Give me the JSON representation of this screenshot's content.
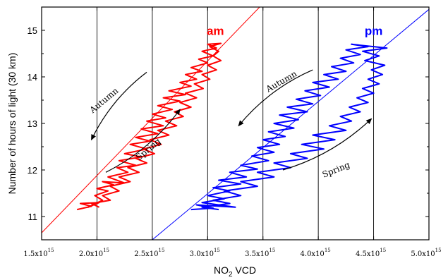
{
  "chart_data": {
    "type": "line",
    "xlabel": "NO",
    "xlabel_sub": "2",
    "xlabel_suffix": " VCD",
    "ylabel": "Number of hours of light (30 km)",
    "xlim": [
      1500000000000000.0,
      5000000000000000.0
    ],
    "ylim": [
      10.5,
      15.5
    ],
    "x_ticks": [
      1500000000000000.0,
      2000000000000000.0,
      2500000000000000.0,
      3000000000000000.0,
      3500000000000000.0,
      4000000000000000.0,
      4500000000000000.0,
      5000000000000000.0
    ],
    "x_tick_labels": [
      {
        "mantissa": "1.5x10",
        "exp": "15"
      },
      {
        "mantissa": "2.0x10",
        "exp": "15"
      },
      {
        "mantissa": "2.5x10",
        "exp": "15"
      },
      {
        "mantissa": "3.0x10",
        "exp": "15"
      },
      {
        "mantissa": "3.5x10",
        "exp": "15"
      },
      {
        "mantissa": "4.0x10",
        "exp": "15"
      },
      {
        "mantissa": "4.5x10",
        "exp": "15"
      },
      {
        "mantissa": "5.0x10",
        "exp": "15"
      }
    ],
    "y_ticks": [
      11,
      12,
      13,
      14,
      15
    ],
    "y_tick_labels": [
      "11",
      "12",
      "13",
      "14",
      "15"
    ],
    "vertical_grid": [
      2000000000000000.0,
      2500000000000000.0,
      3000000000000000.0,
      3500000000000000.0,
      4000000000000000.0,
      4500000000000000.0
    ],
    "series": [
      {
        "name": "am",
        "color": "#ff0000",
        "points": [
          [
            1820000000000000.0,
            11.15
          ],
          [
            1950000000000000.0,
            11.22
          ],
          [
            1850000000000000.0,
            11.28
          ],
          [
            2020000000000000.0,
            11.3
          ],
          [
            1920000000000000.0,
            11.2
          ],
          [
            2050000000000000.0,
            11.35
          ],
          [
            1980000000000000.0,
            11.45
          ],
          [
            2100000000000000.0,
            11.55
          ],
          [
            2000000000000000.0,
            11.6
          ],
          [
            2150000000000000.0,
            11.68
          ],
          [
            2050000000000000.0,
            11.75
          ],
          [
            2250000000000000.0,
            11.72
          ],
          [
            2100000000000000.0,
            11.85
          ],
          [
            2280000000000000.0,
            11.95
          ],
          [
            2180000000000000.0,
            12.05
          ],
          [
            2350000000000000.0,
            12.1
          ],
          [
            2200000000000000.0,
            12.2
          ],
          [
            2400000000000000.0,
            12.28
          ],
          [
            2250000000000000.0,
            12.35
          ],
          [
            2450000000000000.0,
            12.45
          ],
          [
            2300000000000000.0,
            12.55
          ],
          [
            2480000000000000.0,
            12.62
          ],
          [
            2350000000000000.0,
            12.7
          ],
          [
            2550000000000000.0,
            12.78
          ],
          [
            2400000000000000.0,
            12.88
          ],
          [
            2600000000000000.0,
            12.95
          ],
          [
            2450000000000000.0,
            13.05
          ],
          [
            2620000000000000.0,
            13.12
          ],
          [
            2500000000000000.0,
            13.2
          ],
          [
            2680000000000000.0,
            13.3
          ],
          [
            2550000000000000.0,
            13.38
          ],
          [
            2750000000000000.0,
            13.48
          ],
          [
            2600000000000000.0,
            13.55
          ],
          [
            2800000000000000.0,
            13.62
          ],
          [
            2650000000000000.0,
            13.7
          ],
          [
            2850000000000000.0,
            13.8
          ],
          [
            2750000000000000.0,
            13.88
          ],
          [
            2900000000000000.0,
            13.95
          ],
          [
            2800000000000000.0,
            14.05
          ],
          [
            2950000000000000.0,
            14.12
          ],
          [
            2850000000000000.0,
            14.2
          ],
          [
            3000000000000000.0,
            14.3
          ],
          [
            2920000000000000.0,
            14.38
          ],
          [
            3050000000000000.0,
            14.45
          ],
          [
            2950000000000000.0,
            14.55
          ],
          [
            3080000000000000.0,
            14.62
          ],
          [
            3000000000000000.0,
            14.7
          ],
          [
            3120000000000000.0,
            14.72
          ],
          [
            3020000000000000.0,
            14.65
          ],
          [
            3100000000000000.0,
            14.55
          ],
          [
            3050000000000000.0,
            14.45
          ],
          [
            3120000000000000.0,
            14.35
          ],
          [
            3000000000000000.0,
            14.25
          ],
          [
            3080000000000000.0,
            14.15
          ],
          [
            2950000000000000.0,
            14.05
          ],
          [
            3020000000000000.0,
            13.95
          ],
          [
            2880000000000000.0,
            13.85
          ],
          [
            2960000000000000.0,
            13.75
          ],
          [
            2800000000000000.0,
            13.65
          ],
          [
            2900000000000000.0,
            13.55
          ],
          [
            2750000000000000.0,
            13.45
          ],
          [
            2850000000000000.0,
            13.35
          ],
          [
            2700000000000000.0,
            13.25
          ],
          [
            2780000000000000.0,
            13.15
          ],
          [
            2620000000000000.0,
            13.05
          ],
          [
            2720000000000000.0,
            12.95
          ],
          [
            2550000000000000.0,
            12.85
          ],
          [
            2650000000000000.0,
            12.75
          ],
          [
            2480000000000000.0,
            12.65
          ],
          [
            2580000000000000.0,
            12.55
          ],
          [
            2420000000000000.0,
            12.45
          ],
          [
            2520000000000000.0,
            12.35
          ],
          [
            2350000000000000.0,
            12.25
          ],
          [
            2450000000000000.0,
            12.15
          ],
          [
            2280000000000000.0,
            12.05
          ],
          [
            2380000000000000.0,
            11.95
          ],
          [
            2200000000000000.0,
            11.85
          ],
          [
            2300000000000000.0,
            11.75
          ],
          [
            2120000000000000.0,
            11.65
          ],
          [
            2200000000000000.0,
            11.55
          ],
          [
            2050000000000000.0,
            11.45
          ],
          [
            2120000000000000.0,
            11.35
          ],
          [
            1950000000000000.0,
            11.28
          ],
          [
            2020000000000000.0,
            11.2
          ]
        ]
      },
      {
        "name": "pm",
        "color": "#0000ff",
        "points": [
          [
            2850000000000000.0,
            11.15
          ],
          [
            3050000000000000.0,
            11.18
          ],
          [
            2900000000000000.0,
            11.25
          ],
          [
            3250000000000000.0,
            11.2
          ],
          [
            2950000000000000.0,
            11.3
          ],
          [
            3150000000000000.0,
            11.38
          ],
          [
            3000000000000000.0,
            11.45
          ],
          [
            3200000000000000.0,
            11.55
          ],
          [
            3050000000000000.0,
            11.62
          ],
          [
            3300000000000000.0,
            11.7
          ],
          [
            3100000000000000.0,
            11.78
          ],
          [
            3350000000000000.0,
            11.85
          ],
          [
            3200000000000000.0,
            11.95
          ],
          [
            3450000000000000.0,
            12.02
          ],
          [
            3300000000000000.0,
            12.1
          ],
          [
            3550000000000000.0,
            12.2
          ],
          [
            3400000000000000.0,
            12.3
          ],
          [
            3600000000000000.0,
            12.38
          ],
          [
            3450000000000000.0,
            12.48
          ],
          [
            3650000000000000.0,
            12.55
          ],
          [
            3500000000000000.0,
            12.65
          ],
          [
            3700000000000000.0,
            12.72
          ],
          [
            3550000000000000.0,
            12.82
          ],
          [
            3780000000000000.0,
            12.9
          ],
          [
            3600000000000000.0,
            13.0
          ],
          [
            3820000000000000.0,
            13.08
          ],
          [
            3650000000000000.0,
            13.18
          ],
          [
            3900000000000000.0,
            13.25
          ],
          [
            3720000000000000.0,
            13.35
          ],
          [
            3950000000000000.0,
            13.42
          ],
          [
            3800000000000000.0,
            13.52
          ],
          [
            4020000000000000.0,
            13.6
          ],
          [
            3880000000000000.0,
            13.7
          ],
          [
            4100000000000000.0,
            13.78
          ],
          [
            3950000000000000.0,
            13.88
          ],
          [
            4180000000000000.0,
            13.95
          ],
          [
            4050000000000000.0,
            14.05
          ],
          [
            4250000000000000.0,
            14.12
          ],
          [
            4120000000000000.0,
            14.22
          ],
          [
            4320000000000000.0,
            14.3
          ],
          [
            4200000000000000.0,
            14.4
          ],
          [
            4380000000000000.0,
            14.48
          ],
          [
            4250000000000000.0,
            14.58
          ],
          [
            4450000000000000.0,
            14.65
          ],
          [
            4300000000000000.0,
            14.7
          ],
          [
            4620000000000000.0,
            14.62
          ],
          [
            4400000000000000.0,
            14.55
          ],
          [
            4550000000000000.0,
            14.45
          ],
          [
            4420000000000000.0,
            14.35
          ],
          [
            4600000000000000.0,
            14.25
          ],
          [
            4480000000000000.0,
            14.15
          ],
          [
            4580000000000000.0,
            14.05
          ],
          [
            4450000000000000.0,
            13.95
          ],
          [
            4550000000000000.0,
            13.85
          ],
          [
            4400000000000000.0,
            13.75
          ],
          [
            4500000000000000.0,
            13.65
          ],
          [
            4350000000000000.0,
            13.55
          ],
          [
            4450000000000000.0,
            13.45
          ],
          [
            4280000000000000.0,
            13.35
          ],
          [
            4380000000000000.0,
            13.25
          ],
          [
            4200000000000000.0,
            13.15
          ],
          [
            4300000000000000.0,
            13.05
          ],
          [
            4100000000000000.0,
            12.95
          ],
          [
            4250000000000000.0,
            12.85
          ],
          [
            3950000000000000.0,
            12.75
          ],
          [
            4150000000000000.0,
            12.65
          ],
          [
            3850000000000000.0,
            12.55
          ],
          [
            4050000000000000.0,
            12.45
          ],
          [
            3750000000000000.0,
            12.35
          ],
          [
            3900000000000000.0,
            12.25
          ],
          [
            3600000000000000.0,
            12.15
          ],
          [
            3750000000000000.0,
            12.05
          ],
          [
            3450000000000000.0,
            11.95
          ],
          [
            3600000000000000.0,
            11.85
          ],
          [
            3300000000000000.0,
            11.75
          ],
          [
            3450000000000000.0,
            11.65
          ],
          [
            3150000000000000.0,
            11.55
          ],
          [
            3300000000000000.0,
            11.45
          ],
          [
            3050000000000000.0,
            11.35
          ],
          [
            3200000000000000.0,
            11.28
          ],
          [
            2950000000000000.0,
            11.2
          ],
          [
            3100000000000000.0,
            11.15
          ]
        ]
      }
    ],
    "fit_lines": [
      {
        "series": "am",
        "color": "#ff0000",
        "from": [
          1500000000000000.0,
          10.65
        ],
        "to": [
          3470000000000000.0,
          15.5
        ]
      },
      {
        "series": "pm",
        "color": "#0000ff",
        "from": [
          2500000000000000.0,
          10.5
        ],
        "to": [
          5000000000000000.0,
          15.45
        ]
      }
    ],
    "annotations": [
      {
        "text": "am",
        "x": 3070000000000000.0,
        "y": 14.9,
        "color": "#ff0000"
      },
      {
        "text": "pm",
        "x": 4500000000000000.0,
        "y": 14.9,
        "color": "#0000ff"
      },
      {
        "text": "Autumn",
        "x": 2080000000000000.0,
        "y": 13.45,
        "rotate": -40,
        "color": "#000000"
      },
      {
        "text": "Spring",
        "x": 2480000000000000.0,
        "y": 12.4,
        "rotate": -40,
        "color": "#000000"
      },
      {
        "text": "Autumn",
        "x": 3680000000000000.0,
        "y": 13.85,
        "rotate": -30,
        "color": "#000000"
      },
      {
        "text": "Spring",
        "x": 4170000000000000.0,
        "y": 11.95,
        "rotate": -22,
        "color": "#000000"
      }
    ],
    "arrows": [
      {
        "from": [
          2450000000000000.0,
          14.1
        ],
        "to": [
          1950000000000000.0,
          12.65
        ]
      },
      {
        "from": [
          2080000000000000.0,
          11.95
        ],
        "to": [
          2750000000000000.0,
          13.3
        ]
      },
      {
        "from": [
          3950000000000000.0,
          14.15
        ],
        "to": [
          3280000000000000.0,
          12.95
        ]
      },
      {
        "from": [
          3680000000000000.0,
          12.0
        ],
        "to": [
          4480000000000000.0,
          13.1
        ]
      }
    ],
    "grid": false,
    "legend": "none"
  }
}
